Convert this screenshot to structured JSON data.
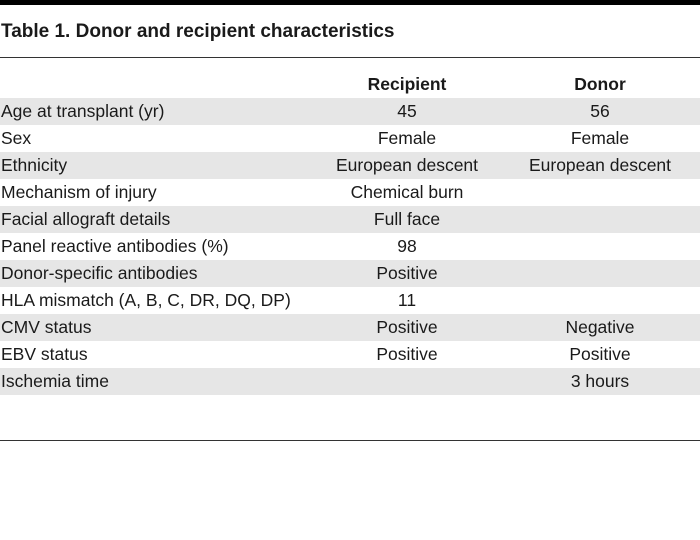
{
  "title": "Table 1. Donor and recipient characteristics",
  "table": {
    "headers": {
      "label": "",
      "recipient": "Recipient",
      "donor": "Donor"
    },
    "rows": [
      {
        "label": "Age at transplant (yr)",
        "recipient": "45",
        "donor": "56"
      },
      {
        "label": "Sex",
        "recipient": "Female",
        "donor": "Female"
      },
      {
        "label": "Ethnicity",
        "recipient": "European descent",
        "donor": "European descent"
      },
      {
        "label": "Mechanism of injury",
        "recipient": "Chemical burn",
        "donor": ""
      },
      {
        "label": "Facial allograft details",
        "recipient": "Full face",
        "donor": ""
      },
      {
        "label": "Panel reactive antibodies (%)",
        "recipient": "98",
        "donor": ""
      },
      {
        "label": "Donor-specific antibodies",
        "recipient": "Positive",
        "donor": ""
      },
      {
        "label": "HLA mismatch (A, B, C, DR, DQ, DP)",
        "recipient": "11",
        "donor": ""
      },
      {
        "label": "CMV status",
        "recipient": "Positive",
        "donor": "Negative"
      },
      {
        "label": "EBV status",
        "recipient": "Positive",
        "donor": "Positive"
      },
      {
        "label": "Ischemia time",
        "recipient": "",
        "donor": "3 hours"
      }
    ]
  },
  "colors": {
    "shaded_row": "#e6e6e6",
    "text": "#1a1a1a",
    "rule": "#333333"
  }
}
